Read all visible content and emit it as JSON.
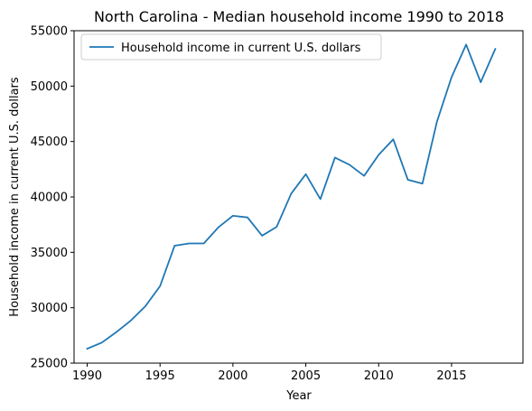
{
  "chart_data": {
    "type": "line",
    "title": "North Carolina - Median household income 1990 to 2018",
    "xlabel": "Year",
    "ylabel": "Household income in current U.S. dollars",
    "xlim": [
      1989.1,
      2019.9
    ],
    "ylim": [
      25000,
      55000
    ],
    "xticks": [
      1990,
      1995,
      2000,
      2005,
      2010,
      2015
    ],
    "yticks": [
      25000,
      30000,
      35000,
      40000,
      45000,
      50000,
      55000
    ],
    "grid": false,
    "legend_position": "top-left",
    "series": [
      {
        "name": "Household income in current U.S. dollars",
        "color": "#1f77b4",
        "x": [
          1990,
          1991,
          1992,
          1993,
          1994,
          1995,
          1996,
          1997,
          1998,
          1999,
          2000,
          2001,
          2002,
          2003,
          2004,
          2005,
          2006,
          2007,
          2008,
          2009,
          2010,
          2011,
          2012,
          2013,
          2014,
          2015,
          2016,
          2017,
          2018
        ],
        "values": [
          26300,
          26850,
          27800,
          28850,
          30150,
          31950,
          35600,
          35800,
          35800,
          37250,
          38300,
          38150,
          36500,
          37300,
          40300,
          42050,
          39800,
          43550,
          42900,
          41900,
          43800,
          45200,
          41550,
          41200,
          46800,
          50800,
          53750,
          50350,
          53350
        ]
      }
    ]
  }
}
